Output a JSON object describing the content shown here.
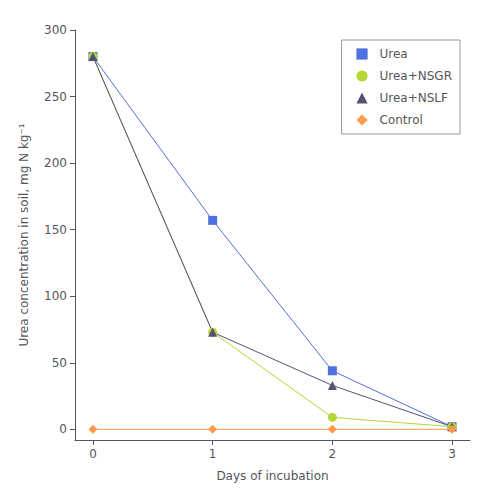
{
  "chart_data": {
    "type": "line",
    "x": [
      0,
      1,
      2,
      3
    ],
    "series": [
      {
        "name": "Urea",
        "values": [
          280,
          157,
          44,
          2
        ],
        "marker": "square"
      },
      {
        "name": "Urea+NSGR",
        "values": [
          280,
          73,
          9,
          2
        ],
        "marker": "circle"
      },
      {
        "name": "Urea+NSLF",
        "values": [
          280,
          73,
          33,
          2
        ],
        "marker": "triangle"
      },
      {
        "name": "Control",
        "values": [
          0,
          0,
          0,
          0
        ],
        "marker": "diamond"
      }
    ],
    "xlabel": "Days of incubation",
    "ylabel": "Urea concentration in soil, mg N kg⁻¹",
    "xlim": [
      -0.15,
      3.15
    ],
    "xticks": [
      0,
      1,
      2,
      3
    ],
    "ylim": [
      -8,
      300
    ],
    "yticks": [
      0,
      50,
      100,
      150,
      200,
      250,
      300
    ],
    "grid": false,
    "legend": "upper right"
  }
}
